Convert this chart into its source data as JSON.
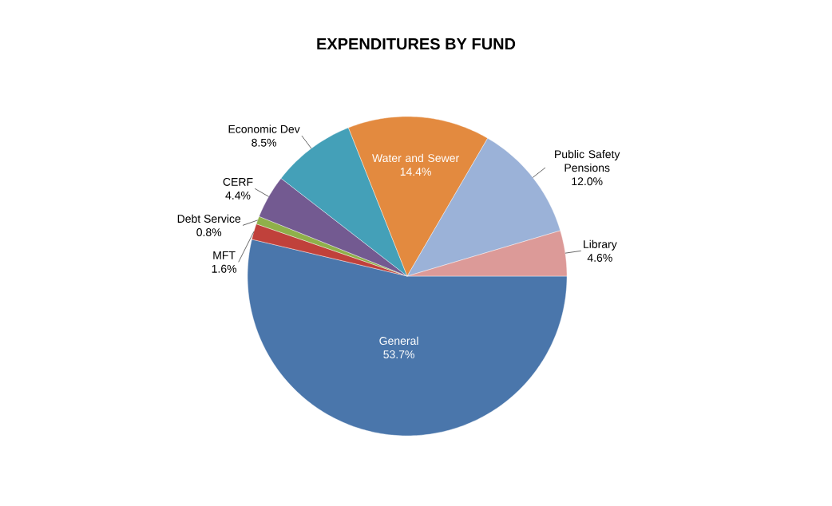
{
  "chart_data": {
    "type": "pie",
    "title": "EXPENDITURES BY FUND",
    "categories": [
      "General",
      "MFT",
      "Debt Service",
      "CERF",
      "Economic Dev",
      "Water and Sewer",
      "Public Safety Pensions",
      "Library"
    ],
    "values": [
      53.7,
      1.6,
      0.8,
      4.4,
      8.5,
      14.4,
      12.0,
      4.6
    ],
    "value_labels": [
      "53.7%",
      "1.6%",
      "0.8%",
      "4.4%",
      "8.5%",
      "14.4%",
      "12.0%",
      "4.6%"
    ],
    "colors": [
      "#4a76ab",
      "#c0413b",
      "#8fb04a",
      "#735a91",
      "#44a0b8",
      "#e38a3f",
      "#9bb2d8",
      "#dc9a98"
    ]
  }
}
